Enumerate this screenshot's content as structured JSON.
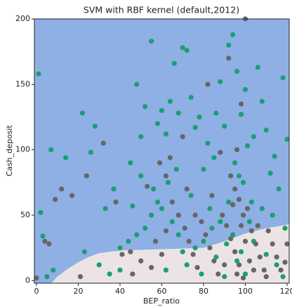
{
  "chart_data": {
    "type": "scatter",
    "title": "SVM with RBF kernel (default,2012)",
    "x_label": "BEP_ratio",
    "y_label": "Cash_deposit",
    "xlim": [
      -1,
      121
    ],
    "ylim": [
      -2,
      200
    ],
    "xticks": [
      0,
      20,
      40,
      60,
      80,
      100,
      120
    ],
    "yticks": [
      0,
      50,
      100,
      150,
      200
    ],
    "background_color": "#8eb0e4",
    "region": {
      "color": "#ece4e4",
      "x": [
        7,
        10,
        15,
        20,
        25,
        30,
        40,
        60,
        80,
        90,
        100,
        110,
        121
      ],
      "y": [
        -2,
        3,
        9,
        14,
        18,
        21,
        23,
        24,
        25,
        30,
        36,
        40,
        43
      ]
    },
    "series": [
      {
        "color": "#1b9e77",
        "x": [
          1,
          2,
          3,
          7,
          5,
          8,
          14,
          22,
          23,
          28,
          26,
          33,
          37,
          40,
          46,
          48,
          50,
          52,
          55,
          58,
          60,
          62,
          64,
          66,
          70,
          72,
          68,
          74,
          76,
          78,
          80,
          82,
          85,
          86,
          88,
          90,
          92,
          94,
          96,
          98,
          100,
          101,
          104,
          106,
          108,
          110,
          112,
          114,
          116,
          118,
          120,
          95,
          97,
          99,
          103,
          92,
          88,
          84,
          80,
          76,
          70,
          65,
          60,
          56,
          52,
          48,
          44,
          40,
          30,
          35,
          62,
          72,
          86,
          98,
          104,
          110,
          115,
          118,
          100,
          90,
          58,
          63,
          67,
          74,
          83,
          94,
          102,
          108,
          113,
          119,
          96,
          91,
          79,
          68,
          55,
          50,
          45
        ],
        "values": [
          158,
          52,
          34,
          100,
          3,
          8,
          94,
          128,
          22,
          118,
          98,
          55,
          70,
          8,
          57,
          150,
          110,
          133,
          183,
          120,
          130,
          112,
          137,
          166,
          178,
          176,
          128,
          140,
          117,
          125,
          85,
          105,
          94,
          128,
          152,
          118,
          180,
          188,
          160,
          127,
          146,
          103,
          110,
          163,
          137,
          115,
          82,
          95,
          70,
          155,
          108,
          90,
          80,
          75,
          60,
          60,
          45,
          40,
          30,
          25,
          22,
          45,
          55,
          70,
          40,
          35,
          30,
          25,
          12,
          5,
          8,
          12,
          18,
          22,
          30,
          20,
          12,
          3,
          5,
          3,
          60,
          75,
          85,
          65,
          55,
          35,
          45,
          55,
          50,
          40,
          15,
          28,
          5,
          35,
          50,
          80,
          90
        ]
      },
      {
        "color": "#666666",
        "x": [
          0,
          4,
          6,
          9,
          12,
          17,
          21,
          24,
          32,
          38,
          41,
          46,
          53,
          57,
          59,
          62,
          65,
          68,
          71,
          73,
          75,
          77,
          79,
          81,
          83,
          85,
          87,
          89,
          91,
          93,
          95,
          97,
          99,
          101,
          103,
          105,
          107,
          109,
          111,
          113,
          115,
          117,
          119,
          95,
          97,
          99,
          93,
          96,
          98,
          100,
          92,
          82,
          70,
          64,
          60,
          55,
          50,
          45,
          62,
          88,
          94,
          98,
          100,
          102,
          106,
          110,
          120,
          76,
          72,
          84,
          90,
          96,
          104
        ],
        "values": [
          2,
          30,
          28,
          62,
          70,
          65,
          3,
          80,
          105,
          60,
          20,
          5,
          72,
          30,
          90,
          80,
          60,
          50,
          40,
          30,
          20,
          10,
          45,
          35,
          25,
          15,
          5,
          50,
          42,
          32,
          22,
          12,
          2,
          55,
          38,
          28,
          18,
          8,
          38,
          28,
          18,
          8,
          14,
          70,
          62,
          50,
          80,
          100,
          135,
          200,
          170,
          150,
          110,
          94,
          20,
          10,
          15,
          22,
          38,
          98,
          58,
          42,
          30,
          15,
          42,
          3,
          28,
          50,
          70,
          65,
          12,
          5,
          8
        ]
      }
    ]
  }
}
